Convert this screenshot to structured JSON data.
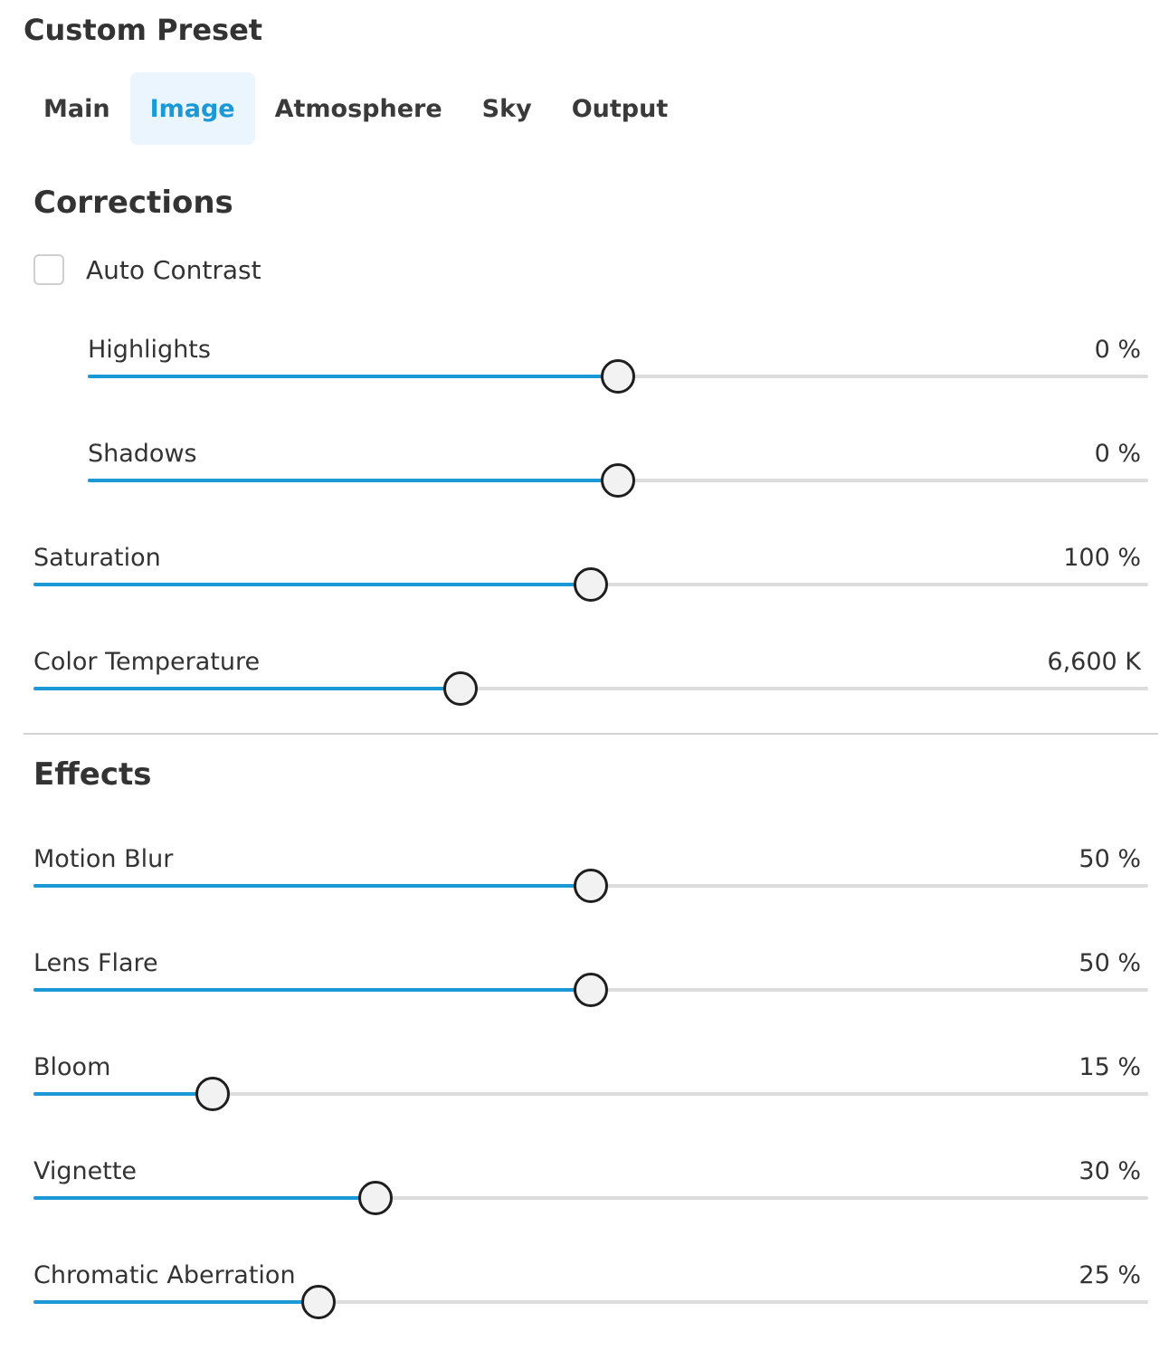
{
  "title": "Custom Preset",
  "tabs": [
    {
      "label": "Main",
      "active": false
    },
    {
      "label": "Image",
      "active": true
    },
    {
      "label": "Atmosphere",
      "active": false
    },
    {
      "label": "Sky",
      "active": false
    },
    {
      "label": "Output",
      "active": false
    }
  ],
  "colors": {
    "accent": "#1a99d6",
    "track": "#dcdcdc",
    "thumb_border": "#1e1e1e"
  },
  "corrections": {
    "heading": "Corrections",
    "auto_contrast": {
      "label": "Auto Contrast",
      "checked": false
    },
    "sliders": [
      {
        "label": "Highlights",
        "value": "0 %",
        "fraction": 0.5
      },
      {
        "label": "Shadows",
        "value": "0 %",
        "fraction": 0.5
      },
      {
        "label": "Saturation",
        "value": "100 %",
        "fraction": 0.5
      },
      {
        "label": "Color Temperature",
        "value": "6,600 K",
        "fraction": 0.383
      }
    ]
  },
  "effects": {
    "heading": "Effects",
    "sliders": [
      {
        "label": "Motion Blur",
        "value": "50 %",
        "fraction": 0.5
      },
      {
        "label": "Lens Flare",
        "value": "50 %",
        "fraction": 0.5
      },
      {
        "label": "Bloom",
        "value": "15 %",
        "fraction": 0.161
      },
      {
        "label": "Vignette",
        "value": "30 %",
        "fraction": 0.307
      },
      {
        "label": "Chromatic Aberration",
        "value": "25 %",
        "fraction": 0.256
      }
    ]
  }
}
